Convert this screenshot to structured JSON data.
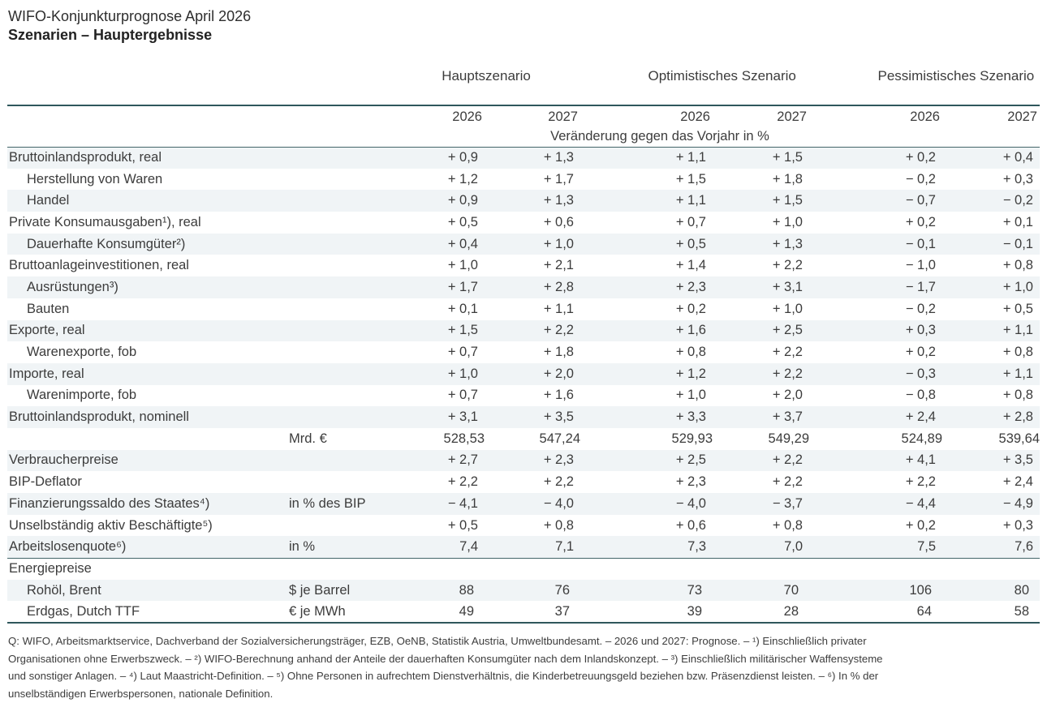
{
  "page": {
    "title_line1": "WIFO-Konjunkturprognose April 2026",
    "title_line2": "Szenarien – Hauptergebnisse"
  },
  "colors": {
    "rule": "#2f575c",
    "row_shading": "#f0f4f6",
    "text": "#3c3c3c"
  },
  "table": {
    "scenarios": [
      {
        "label": "Hauptszenario"
      },
      {
        "label": "Optimistisches Szenario"
      },
      {
        "label": "Pessimistisches Szenario"
      }
    ],
    "years": [
      "2026",
      "2027",
      "2026",
      "2027",
      "2026",
      "2027"
    ],
    "change_note": "Veränderung gegen das Vorjahr in %",
    "rows": [
      {
        "label": "Bruttoinlandsprodukt, real",
        "indent": 0,
        "unit": "",
        "format": "dec1",
        "values": [
          "+ 0,9",
          "+ 1,3",
          "+ 1,1",
          "+ 1,5",
          "+ 0,2",
          "+ 0,4"
        ]
      },
      {
        "label": "Herstellung von Waren",
        "indent": 1,
        "unit": "",
        "format": "dec1",
        "values": [
          "+ 1,2",
          "+ 1,7",
          "+ 1,5",
          "+ 1,8",
          "− 0,2",
          "+ 0,3"
        ]
      },
      {
        "label": "Handel",
        "indent": 1,
        "unit": "",
        "format": "dec1",
        "values": [
          "+ 0,9",
          "+ 1,3",
          "+ 1,1",
          "+ 1,5",
          "− 0,7",
          "− 0,2"
        ]
      },
      {
        "label": "Private Konsumausgaben¹), real",
        "indent": 0,
        "unit": "",
        "format": "dec1",
        "values": [
          "+ 0,5",
          "+ 0,6",
          "+ 0,7",
          "+ 1,0",
          "+ 0,2",
          "+ 0,1"
        ]
      },
      {
        "label": "Dauerhafte Konsumgüter²)",
        "indent": 1,
        "unit": "",
        "format": "dec1",
        "values": [
          "+ 0,4",
          "+ 1,0",
          "+ 0,5",
          "+ 1,3",
          "− 0,1",
          "− 0,1"
        ]
      },
      {
        "label": "Bruttoanlageinvestitionen, real",
        "indent": 0,
        "unit": "",
        "format": "dec1",
        "values": [
          "+ 1,0",
          "+ 2,1",
          "+ 1,4",
          "+ 2,2",
          "− 1,0",
          "+ 0,8"
        ]
      },
      {
        "label": "Ausrüstungen³)",
        "indent": 1,
        "unit": "",
        "format": "dec1",
        "values": [
          "+ 1,7",
          "+ 2,8",
          "+ 2,3",
          "+ 3,1",
          "− 1,7",
          "+ 1,0"
        ]
      },
      {
        "label": "Bauten",
        "indent": 1,
        "unit": "",
        "format": "dec1",
        "values": [
          "+ 0,1",
          "+ 1,1",
          "+ 0,2",
          "+ 1,0",
          "− 0,2",
          "+ 0,5"
        ]
      },
      {
        "label": "Exporte, real",
        "indent": 0,
        "unit": "",
        "format": "dec1",
        "values": [
          "+ 1,5",
          "+ 2,2",
          "+ 1,6",
          "+ 2,5",
          "+ 0,3",
          "+ 1,1"
        ]
      },
      {
        "label": "Warenexporte, fob",
        "indent": 1,
        "unit": "",
        "format": "dec1",
        "values": [
          "+ 0,7",
          "+ 1,8",
          "+ 0,8",
          "+ 2,2",
          "+ 0,2",
          "+ 0,8"
        ]
      },
      {
        "label": "Importe, real",
        "indent": 0,
        "unit": "",
        "format": "dec1",
        "values": [
          "+ 1,0",
          "+ 2,0",
          "+ 1,2",
          "+ 2,2",
          "− 0,3",
          "+ 1,1"
        ]
      },
      {
        "label": "Warenimporte, fob",
        "indent": 1,
        "unit": "",
        "format": "dec1",
        "values": [
          "+ 0,7",
          "+ 1,6",
          "+ 1,0",
          "+ 2,0",
          "− 0,8",
          "+ 0,8"
        ]
      },
      {
        "label": "Bruttoinlandsprodukt, nominell",
        "indent": 0,
        "unit": "",
        "format": "dec1",
        "values": [
          "+ 3,1",
          "+ 3,5",
          "+ 3,3",
          "+ 3,7",
          "+ 2,4",
          "+ 2,8"
        ]
      },
      {
        "label": "",
        "indent": 0,
        "unit": "Mrd. €",
        "format": "dec2",
        "values": [
          "528,53",
          "547,24",
          "529,93",
          "549,29",
          "524,89",
          "539,64"
        ]
      },
      {
        "label": "Verbraucherpreise",
        "indent": 0,
        "unit": "",
        "format": "dec1",
        "values": [
          "+ 2,7",
          "+ 2,3",
          "+ 2,5",
          "+ 2,2",
          "+ 4,1",
          "+ 3,5"
        ]
      },
      {
        "label": "BIP-Deflator",
        "indent": 0,
        "unit": "",
        "format": "dec1",
        "values": [
          "+ 2,2",
          "+ 2,2",
          "+ 2,3",
          "+ 2,2",
          "+ 2,2",
          "+ 2,4"
        ]
      },
      {
        "label": "Finanzierungssaldo des Staates⁴)",
        "indent": 0,
        "unit": "in % des BIP",
        "format": "dec1",
        "values": [
          "− 4,1",
          "− 4,0",
          "− 4,0",
          "− 3,7",
          "− 4,4",
          "− 4,9"
        ]
      },
      {
        "label": "Unselbständig aktiv Beschäftigte⁵)",
        "indent": 0,
        "unit": "",
        "format": "dec1",
        "values": [
          "+ 0,5",
          "+ 0,8",
          "+ 0,6",
          "+ 0,8",
          "+ 0,2",
          "+ 0,3"
        ]
      },
      {
        "label": "Arbeitslosenquote⁶)",
        "indent": 0,
        "unit": "in %",
        "format": "dec1",
        "separator_after": true,
        "values": [
          "7,4",
          "7,1",
          "7,3",
          "7,0",
          "7,5",
          "7,6"
        ]
      },
      {
        "label": "Energiepreise",
        "indent": 0,
        "unit": "",
        "format": "dec1",
        "values": [
          "",
          "",
          "",
          "",
          "",
          ""
        ]
      },
      {
        "label": "Rohöl, Brent",
        "indent": 1,
        "unit": "$ je Barrel",
        "format": "int",
        "values": [
          "88",
          "76",
          "73",
          "70",
          "106",
          "80"
        ]
      },
      {
        "label": "Erdgas, Dutch TTF",
        "indent": 1,
        "unit": "€ je MWh",
        "format": "int",
        "values": [
          "49",
          "37",
          "39",
          "28",
          "64",
          "58"
        ]
      }
    ]
  },
  "footnote_lines": [
    "Q: WIFO, Arbeitsmarktservice, Dachverband der Sozialversicherungsträger, EZB, OeNB, Statistik Austria, Umweltbundesamt. – 2026 und 2027: Prognose. – ¹) Einschließlich privater",
    "Organisationen ohne Erwerbszweck. – ²) WIFO-Berechnung anhand der Anteile der dauerhaften Konsumgüter nach dem Inlandskonzept. – ³) Einschließlich militärischer Waffensysteme",
    "und sonstiger Anlagen. – ⁴) Laut Maastricht-Definition. – ⁵) Ohne Personen in aufrechtem Dienstverhältnis, die Kinderbetreuungsgeld beziehen bzw. Präsenzdienst leisten. – ⁶) In % der",
    "unselbständigen Erwerbspersonen, nationale Definition."
  ]
}
